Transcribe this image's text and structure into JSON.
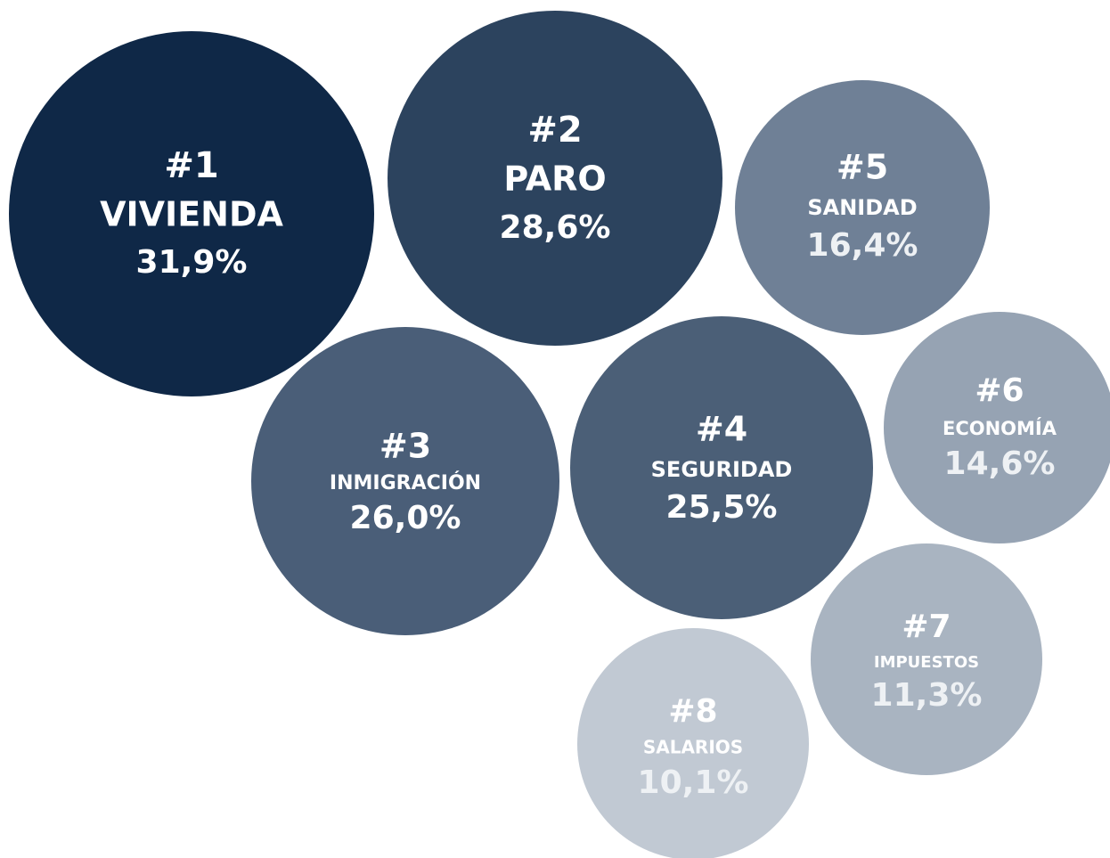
{
  "chart_data": {
    "type": "bubble",
    "ranks": [
      "#1",
      "#2",
      "#3",
      "#4",
      "#5",
      "#6",
      "#7",
      "#8"
    ],
    "categories": [
      "VIVIENDA",
      "PARO",
      "INMIGRACIÓN",
      "SEGURIDAD",
      "SANIDAD",
      "ECONOMÍA",
      "IMPUESTOS",
      "SALARIOS"
    ],
    "values": [
      31.9,
      28.6,
      26.0,
      25.5,
      16.4,
      14.6,
      11.3,
      10.1
    ],
    "value_labels": [
      "31,9%",
      "28,6%",
      "26,0%",
      "25,5%",
      "16,4%",
      "14,6%",
      "11,3%",
      "10,1%"
    ],
    "colors": [
      "#0f2847",
      "#2c435e",
      "#4a5e78",
      "#4b5f77",
      "#6f8096",
      "#96a3b3",
      "#a9b4c1",
      "#c1c9d3"
    ]
  }
}
